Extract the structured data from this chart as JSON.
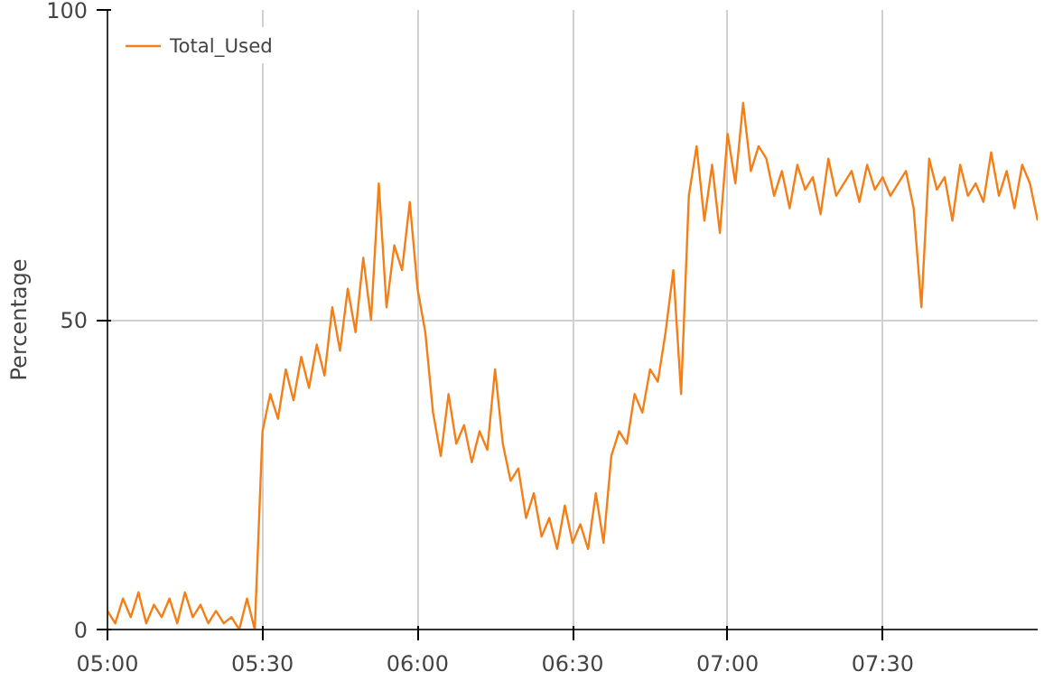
{
  "chart_data": {
    "type": "line",
    "ylabel": "Percentage",
    "legend": "top left",
    "grid": true,
    "line_style": "solid",
    "xlim": [
      5,
      8
    ],
    "ylim": [
      0,
      100
    ],
    "yticks": [
      0,
      50,
      100
    ],
    "xticks": [
      {
        "value": 5,
        "label": "05:00"
      },
      {
        "value": 5.5,
        "label": "05:30"
      },
      {
        "value": 6,
        "label": "06:00"
      },
      {
        "value": 6.5,
        "label": "06:30"
      },
      {
        "value": 7,
        "label": "07:00"
      },
      {
        "value": 7.5,
        "label": "07:30"
      }
    ],
    "x": [
      5.0,
      5.025,
      5.05,
      5.075,
      5.1,
      5.125,
      5.15,
      5.175,
      5.2,
      5.225,
      5.25,
      5.275,
      5.3,
      5.325,
      5.35,
      5.375,
      5.4,
      5.425,
      5.45,
      5.475,
      5.5,
      5.525,
      5.55,
      5.575,
      5.6,
      5.625,
      5.65,
      5.675,
      5.7,
      5.725,
      5.75,
      5.775,
      5.8,
      5.825,
      5.85,
      5.875,
      5.9,
      5.925,
      5.95,
      5.975,
      6.0,
      6.025,
      6.05,
      6.075,
      6.1,
      6.125,
      6.15,
      6.175,
      6.2,
      6.225,
      6.25,
      6.275,
      6.3,
      6.325,
      6.35,
      6.375,
      6.4,
      6.425,
      6.45,
      6.475,
      6.5,
      6.525,
      6.55,
      6.575,
      6.6,
      6.625,
      6.65,
      6.675,
      6.7,
      6.725,
      6.75,
      6.775,
      6.8,
      6.825,
      6.85,
      6.875,
      6.9,
      6.925,
      6.95,
      6.975,
      7.0,
      7.025,
      7.05,
      7.075,
      7.1,
      7.125,
      7.15,
      7.175,
      7.2,
      7.225,
      7.25,
      7.275,
      7.3,
      7.325,
      7.35,
      7.375,
      7.4,
      7.425,
      7.45,
      7.475,
      7.5,
      7.525,
      7.55,
      7.575,
      7.6,
      7.625,
      7.65,
      7.675,
      7.7,
      7.725,
      7.75,
      7.775,
      7.8,
      7.825,
      7.85,
      7.875,
      7.9,
      7.925,
      7.95,
      7.975,
      8.0
    ],
    "series": [
      {
        "name": "Total_Used",
        "color": "#f57f17",
        "values": [
          3,
          1,
          5,
          2,
          6,
          1,
          4,
          2,
          5,
          1,
          6,
          2,
          4,
          1,
          3,
          1,
          2,
          0,
          5,
          0,
          32,
          38,
          34,
          42,
          37,
          44,
          39,
          46,
          41,
          52,
          45,
          55,
          48,
          60,
          50,
          72,
          52,
          62,
          58,
          69,
          55,
          48,
          35,
          28,
          38,
          30,
          33,
          27,
          32,
          29,
          42,
          30,
          24,
          26,
          18,
          22,
          15,
          18,
          13,
          20,
          14,
          17,
          13,
          22,
          14,
          28,
          32,
          30,
          38,
          35,
          42,
          40,
          48,
          58,
          38,
          70,
          78,
          66,
          75,
          64,
          80,
          72,
          85,
          74,
          78,
          76,
          70,
          74,
          68,
          75,
          71,
          73,
          67,
          76,
          70,
          72,
          74,
          69,
          75,
          71,
          73,
          70,
          72,
          74,
          68,
          52,
          76,
          71,
          73,
          66,
          75,
          70,
          72,
          69,
          77,
          70,
          74,
          68,
          75,
          72,
          66
        ]
      }
    ]
  }
}
